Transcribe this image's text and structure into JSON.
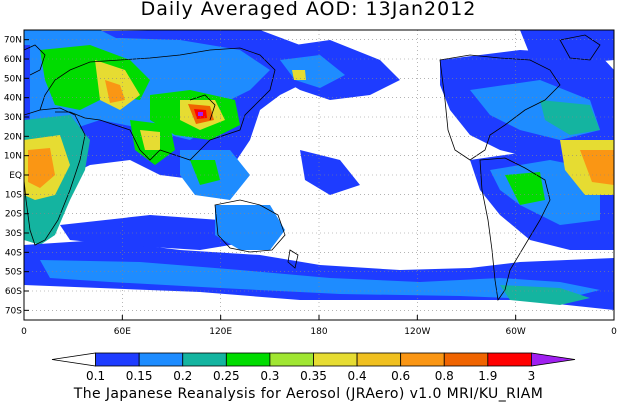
{
  "title": "Daily Averaged AOD: 13Jan2012",
  "credit": "The Japanese Reanalysis for Aerosol (JRAero) v1.0 MRI/KU_RIAM",
  "map": {
    "lat_labels": [
      "70N",
      "60N",
      "50N",
      "40N",
      "30N",
      "20N",
      "10N",
      "EQ",
      "10S",
      "20S",
      "30S",
      "40S",
      "50S",
      "60S",
      "70S"
    ],
    "lat_values": [
      70,
      60,
      50,
      40,
      30,
      20,
      10,
      0,
      -10,
      -20,
      -30,
      -40,
      -50,
      -60,
      -70
    ],
    "lon_labels": [
      "0",
      "60E",
      "120E",
      "180",
      "120W",
      "60W",
      "0"
    ],
    "lon_values": [
      0,
      60,
      120,
      180,
      240,
      300,
      360
    ],
    "lat_range": [
      -75,
      75
    ],
    "lon_range": [
      0,
      360
    ],
    "grid": "dotted"
  },
  "colorbar": {
    "levels": [
      "0.1",
      "0.15",
      "0.2",
      "0.25",
      "0.3",
      "0.35",
      "0.4",
      "0.6",
      "0.8",
      "1.9",
      "3"
    ],
    "colors": [
      "#ffffff",
      "#1e3cff",
      "#1e8cff",
      "#14b4a0",
      "#00dc00",
      "#a0e632",
      "#e6dc32",
      "#f0c020",
      "#fa9614",
      "#f06400",
      "#ff0000",
      "#a020f0"
    ]
  },
  "colors": {
    "ocean": "#ffffff",
    "coast": "#000000"
  }
}
